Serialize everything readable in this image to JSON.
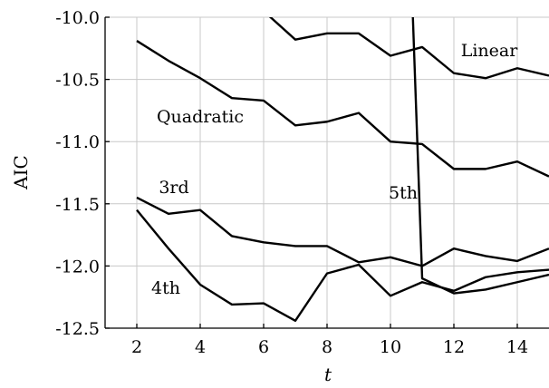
{
  "chart_data": {
    "type": "line",
    "xlabel": "t",
    "ylabel": "AIC",
    "xlim": [
      1,
      15
    ],
    "ylim": [
      -12.5,
      -10.0
    ],
    "xticks": [
      2,
      4,
      6,
      8,
      10,
      12,
      14
    ],
    "yticks": [
      -10.0,
      -10.5,
      -11.0,
      -11.5,
      -12.0,
      -12.5
    ],
    "ytick_labels": [
      "-10.0",
      "-10.5",
      "-11.0",
      "-11.5",
      "-12.0",
      "-12.5"
    ],
    "grid": true,
    "legend": "none",
    "series": [
      {
        "name": "Linear",
        "x": [
          6,
          7,
          8,
          9,
          10,
          11,
          12,
          13,
          14,
          15
        ],
        "y": [
          -9.95,
          -10.18,
          -10.13,
          -10.13,
          -10.31,
          -10.24,
          -10.45,
          -10.49,
          -10.41,
          -10.47
        ]
      },
      {
        "name": "Quadratic",
        "x": [
          2,
          3,
          4,
          5,
          6,
          7,
          8,
          9,
          10,
          11,
          12,
          13,
          14,
          15
        ],
        "y": [
          -10.19,
          -10.35,
          -10.49,
          -10.65,
          -10.67,
          -10.87,
          -10.84,
          -10.77,
          -11.0,
          -11.02,
          -11.22,
          -11.22,
          -11.16,
          -11.28
        ]
      },
      {
        "name": "3rd",
        "x": [
          2,
          3,
          4,
          5,
          6,
          7,
          8,
          9,
          10,
          11,
          12,
          13,
          14,
          15
        ],
        "y": [
          -11.45,
          -11.58,
          -11.55,
          -11.76,
          -11.81,
          -11.84,
          -11.84,
          -11.97,
          -11.93,
          -12.0,
          -11.86,
          -11.92,
          -11.96,
          -11.86
        ]
      },
      {
        "name": "4th",
        "x": [
          2,
          3,
          4,
          5,
          6,
          7,
          8,
          9,
          10,
          11,
          12,
          13,
          14,
          15
        ],
        "y": [
          -11.55,
          -11.86,
          -12.15,
          -12.31,
          -12.3,
          -12.44,
          -12.06,
          -11.99,
          -12.24,
          -12.13,
          -12.2,
          -12.09,
          -12.05,
          -12.03
        ]
      },
      {
        "name": "5th",
        "x": [
          10.7,
          11,
          12,
          13,
          14,
          15
        ],
        "y": [
          -9.95,
          -12.1,
          -12.22,
          -12.19,
          -12.13,
          -12.07
        ]
      }
    ]
  }
}
